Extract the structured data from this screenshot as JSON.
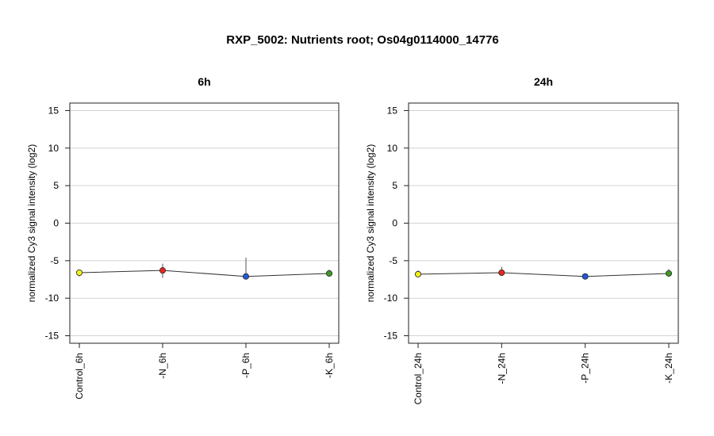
{
  "title": "RXP_5002: Nutrients root; Os04g0114000_14776",
  "chart_data": [
    {
      "type": "line",
      "title": "6h",
      "ylabel": "normalized Cy3 signal intensity (log2)",
      "ylim": [
        -16,
        16
      ],
      "yticks": [
        15,
        10,
        5,
        0,
        -5,
        -10,
        -15
      ],
      "grid": true,
      "categories": [
        "Control_6h",
        "-N_6h",
        "-P_6h",
        "-K_6h"
      ],
      "values": [
        -6.6,
        -6.3,
        -7.1,
        -6.7
      ],
      "error_low": [
        -7.1,
        -7.3,
        -7.4,
        -7.0
      ],
      "error_high": [
        -6.3,
        -5.4,
        -4.6,
        -6.2
      ],
      "point_colors": [
        "#f2f21a",
        "#e8281e",
        "#1f5bd6",
        "#3c9a24"
      ]
    },
    {
      "type": "line",
      "title": "24h",
      "ylabel": "normalized Cy3 signal intensity (log2)",
      "ylim": [
        -16,
        16
      ],
      "yticks": [
        15,
        10,
        5,
        0,
        -5,
        -10,
        -15
      ],
      "grid": true,
      "categories": [
        "Control_24h",
        "-N_24h",
        "-P_24h",
        "-K_24h"
      ],
      "values": [
        -6.8,
        -6.6,
        -7.1,
        -6.7
      ],
      "error_low": [
        -7.2,
        -7.0,
        -7.5,
        -7.0
      ],
      "error_high": [
        -6.3,
        -5.8,
        -6.7,
        -6.1
      ],
      "point_colors": [
        "#f2f21a",
        "#e8281e",
        "#1f5bd6",
        "#3c9a24"
      ]
    }
  ]
}
